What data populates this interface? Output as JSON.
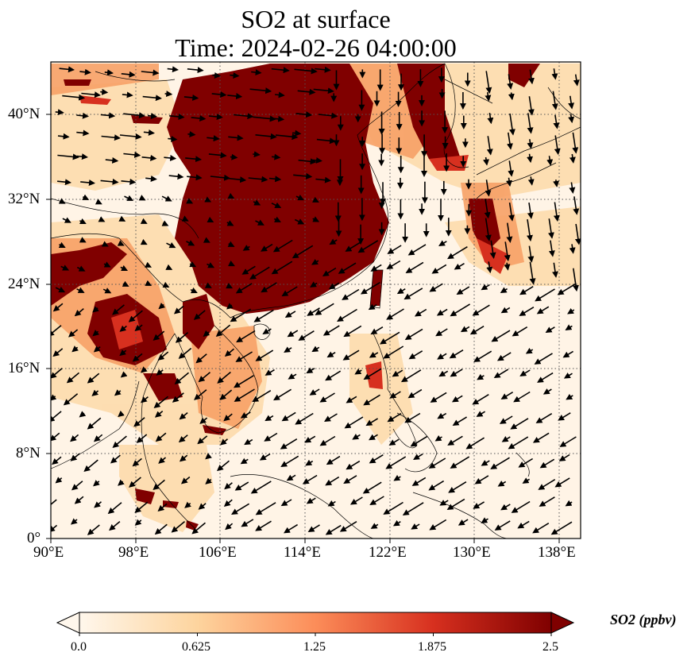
{
  "title": {
    "line1": "SO2 at surface",
    "line2": "Time: 2024-02-26 04:00:00"
  },
  "map": {
    "lon_range": [
      90,
      140
    ],
    "lat_range": [
      0,
      45
    ],
    "lon_ticks": [
      "90°E",
      "98°E",
      "106°E",
      "114°E",
      "122°E",
      "130°E",
      "138°E"
    ],
    "lat_ticks": [
      "0°",
      "8°N",
      "16°N",
      "24°N",
      "32°N",
      "40°N"
    ],
    "gridlines": "dotted"
  },
  "colorbar": {
    "label": "SO2 (ppbv)",
    "ticks": [
      "0.0",
      "0.625",
      "1.25",
      "1.875",
      "2.5"
    ],
    "range": [
      0,
      2.5
    ],
    "extend": "both",
    "colormap": [
      "#fff7ec",
      "#fdd49e",
      "#fc8d59",
      "#d7301f",
      "#7f0000"
    ]
  }
}
